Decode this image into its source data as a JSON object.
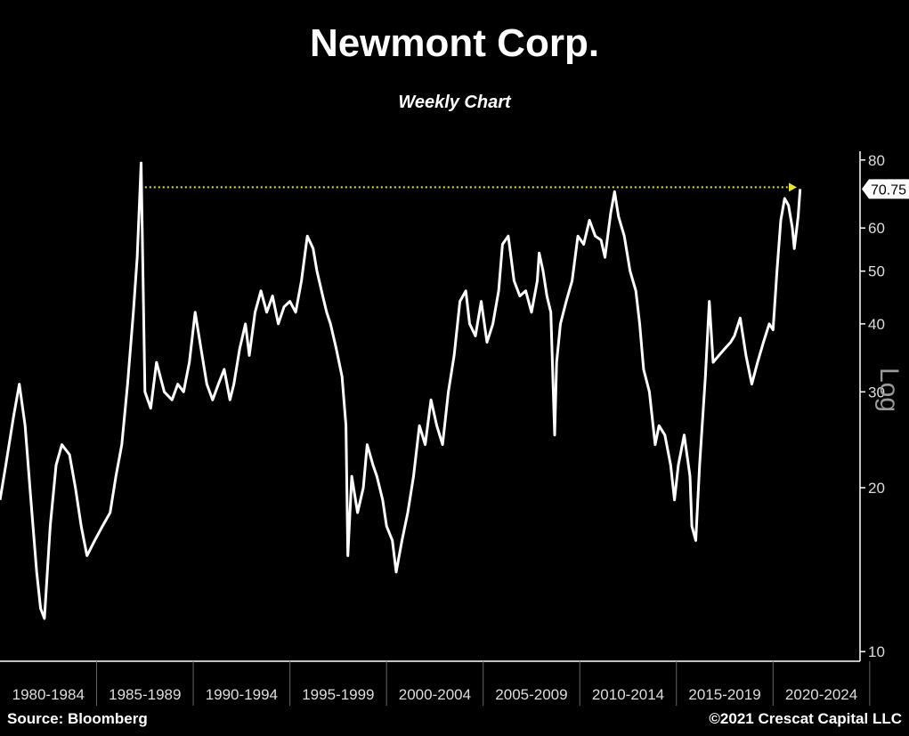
{
  "header": {
    "title": "Newmont Corp.",
    "subtitle": "Weekly Chart"
  },
  "footer": {
    "source": "Source: Bloomberg",
    "copyright": "©2021 Crescat Capital LLC"
  },
  "colors": {
    "background": "#000000",
    "line": "#ffffff",
    "reference_line": "#e8e23a"
  },
  "chart_data": {
    "type": "line",
    "title": "Newmont Corp.",
    "subtitle": "Weekly Chart",
    "xlabel": "",
    "ylabel": "Log",
    "yscale": "log",
    "ylim": [
      9.6,
      83
    ],
    "xlim": [
      1980,
      2024.5
    ],
    "yticks": [
      10,
      20,
      30,
      40,
      50,
      60,
      80
    ],
    "x_categories": [
      "1980-1984",
      "1985-1989",
      "1990-1994",
      "1995-1999",
      "2000-2004",
      "2005-2009",
      "2010-2014",
      "2015-2019",
      "2020-2024"
    ],
    "last_value_label": "70.75",
    "last_value": 70.75,
    "reference_line": {
      "y": 70.75,
      "x_start": 1987.5,
      "x_end": 2021.0,
      "style": "dotted",
      "arrow": "right"
    },
    "grid": false,
    "series": [
      {
        "values": [
          [
            1980.0,
            19
          ],
          [
            1980.3,
            22
          ],
          [
            1980.7,
            27
          ],
          [
            1981.0,
            31
          ],
          [
            1981.3,
            26
          ],
          [
            1981.6,
            19
          ],
          [
            1981.9,
            14
          ],
          [
            1982.1,
            12
          ],
          [
            1982.3,
            11.5
          ],
          [
            1982.6,
            17
          ],
          [
            1982.9,
            22
          ],
          [
            1983.2,
            24
          ],
          [
            1983.6,
            23
          ],
          [
            1983.9,
            20
          ],
          [
            1984.2,
            17
          ],
          [
            1984.5,
            15
          ],
          [
            1984.9,
            16
          ],
          [
            1985.3,
            17
          ],
          [
            1985.7,
            18
          ],
          [
            1986.0,
            21
          ],
          [
            1986.3,
            24
          ],
          [
            1986.6,
            31
          ],
          [
            1986.9,
            42
          ],
          [
            1987.1,
            53
          ],
          [
            1987.3,
            79
          ],
          [
            1987.5,
            30
          ],
          [
            1987.8,
            28
          ],
          [
            1988.1,
            34
          ],
          [
            1988.5,
            30
          ],
          [
            1988.9,
            29
          ],
          [
            1989.2,
            31
          ],
          [
            1989.5,
            30
          ],
          [
            1989.8,
            34
          ],
          [
            1990.1,
            42
          ],
          [
            1990.4,
            36
          ],
          [
            1990.7,
            31
          ],
          [
            1991.0,
            29
          ],
          [
            1991.3,
            31
          ],
          [
            1991.6,
            33
          ],
          [
            1991.9,
            29
          ],
          [
            1992.1,
            31
          ],
          [
            1992.4,
            36
          ],
          [
            1992.7,
            40
          ],
          [
            1992.9,
            35
          ],
          [
            1993.2,
            42
          ],
          [
            1993.5,
            46
          ],
          [
            1993.8,
            42
          ],
          [
            1994.1,
            45
          ],
          [
            1994.4,
            40
          ],
          [
            1994.7,
            43
          ],
          [
            1995.0,
            44
          ],
          [
            1995.3,
            42
          ],
          [
            1995.6,
            48
          ],
          [
            1995.9,
            58
          ],
          [
            1996.2,
            55
          ],
          [
            1996.4,
            50
          ],
          [
            1996.7,
            45
          ],
          [
            1996.9,
            42
          ],
          [
            1997.1,
            40
          ],
          [
            1997.4,
            36
          ],
          [
            1997.7,
            32
          ],
          [
            1997.9,
            26
          ],
          [
            1998.0,
            15
          ],
          [
            1998.2,
            21
          ],
          [
            1998.5,
            18
          ],
          [
            1998.8,
            20
          ],
          [
            1999.0,
            24
          ],
          [
            1999.3,
            22
          ],
          [
            1999.5,
            21
          ],
          [
            1999.8,
            19
          ],
          [
            2000.0,
            17
          ],
          [
            2000.3,
            16
          ],
          [
            2000.5,
            14
          ],
          [
            2000.8,
            16
          ],
          [
            2001.1,
            18
          ],
          [
            2001.4,
            21
          ],
          [
            2001.7,
            26
          ],
          [
            2002.0,
            24
          ],
          [
            2002.3,
            29
          ],
          [
            2002.6,
            26
          ],
          [
            2002.9,
            24
          ],
          [
            2003.2,
            30
          ],
          [
            2003.5,
            35
          ],
          [
            2003.8,
            44
          ],
          [
            2004.1,
            46
          ],
          [
            2004.3,
            40
          ],
          [
            2004.6,
            38
          ],
          [
            2004.9,
            44
          ],
          [
            2005.2,
            37
          ],
          [
            2005.5,
            40
          ],
          [
            2005.8,
            46
          ],
          [
            2006.0,
            56
          ],
          [
            2006.3,
            58
          ],
          [
            2006.6,
            48
          ],
          [
            2006.9,
            45
          ],
          [
            2007.2,
            46
          ],
          [
            2007.5,
            42
          ],
          [
            2007.8,
            48
          ],
          [
            2007.9,
            54
          ],
          [
            2008.1,
            50
          ],
          [
            2008.3,
            45
          ],
          [
            2008.5,
            42
          ],
          [
            2008.7,
            25
          ],
          [
            2008.8,
            34
          ],
          [
            2009.0,
            40
          ],
          [
            2009.3,
            44
          ],
          [
            2009.6,
            48
          ],
          [
            2009.9,
            58
          ],
          [
            2010.2,
            56
          ],
          [
            2010.5,
            62
          ],
          [
            2010.8,
            58
          ],
          [
            2011.1,
            57
          ],
          [
            2011.3,
            53
          ],
          [
            2011.6,
            64
          ],
          [
            2011.8,
            70
          ],
          [
            2012.0,
            63
          ],
          [
            2012.3,
            58
          ],
          [
            2012.6,
            50
          ],
          [
            2012.9,
            46
          ],
          [
            2013.1,
            40
          ],
          [
            2013.3,
            33
          ],
          [
            2013.6,
            30
          ],
          [
            2013.9,
            24
          ],
          [
            2014.1,
            26
          ],
          [
            2014.4,
            25
          ],
          [
            2014.7,
            22
          ],
          [
            2014.9,
            19
          ],
          [
            2015.1,
            22
          ],
          [
            2015.4,
            25
          ],
          [
            2015.7,
            21
          ],
          [
            2015.8,
            17
          ],
          [
            2016.0,
            16
          ],
          [
            2016.2,
            22
          ],
          [
            2016.5,
            32
          ],
          [
            2016.7,
            44
          ],
          [
            2016.9,
            34
          ],
          [
            2017.2,
            35
          ],
          [
            2017.5,
            36
          ],
          [
            2017.8,
            37
          ],
          [
            2018.0,
            38
          ],
          [
            2018.3,
            41
          ],
          [
            2018.6,
            35
          ],
          [
            2018.9,
            31
          ],
          [
            2019.2,
            34
          ],
          [
            2019.5,
            37
          ],
          [
            2019.8,
            40
          ],
          [
            2020.0,
            39
          ],
          [
            2020.2,
            50
          ],
          [
            2020.4,
            62
          ],
          [
            2020.6,
            68
          ],
          [
            2020.8,
            66
          ],
          [
            2021.0,
            60
          ],
          [
            2021.1,
            55
          ],
          [
            2021.3,
            63
          ],
          [
            2021.4,
            70.75
          ]
        ]
      }
    ]
  }
}
